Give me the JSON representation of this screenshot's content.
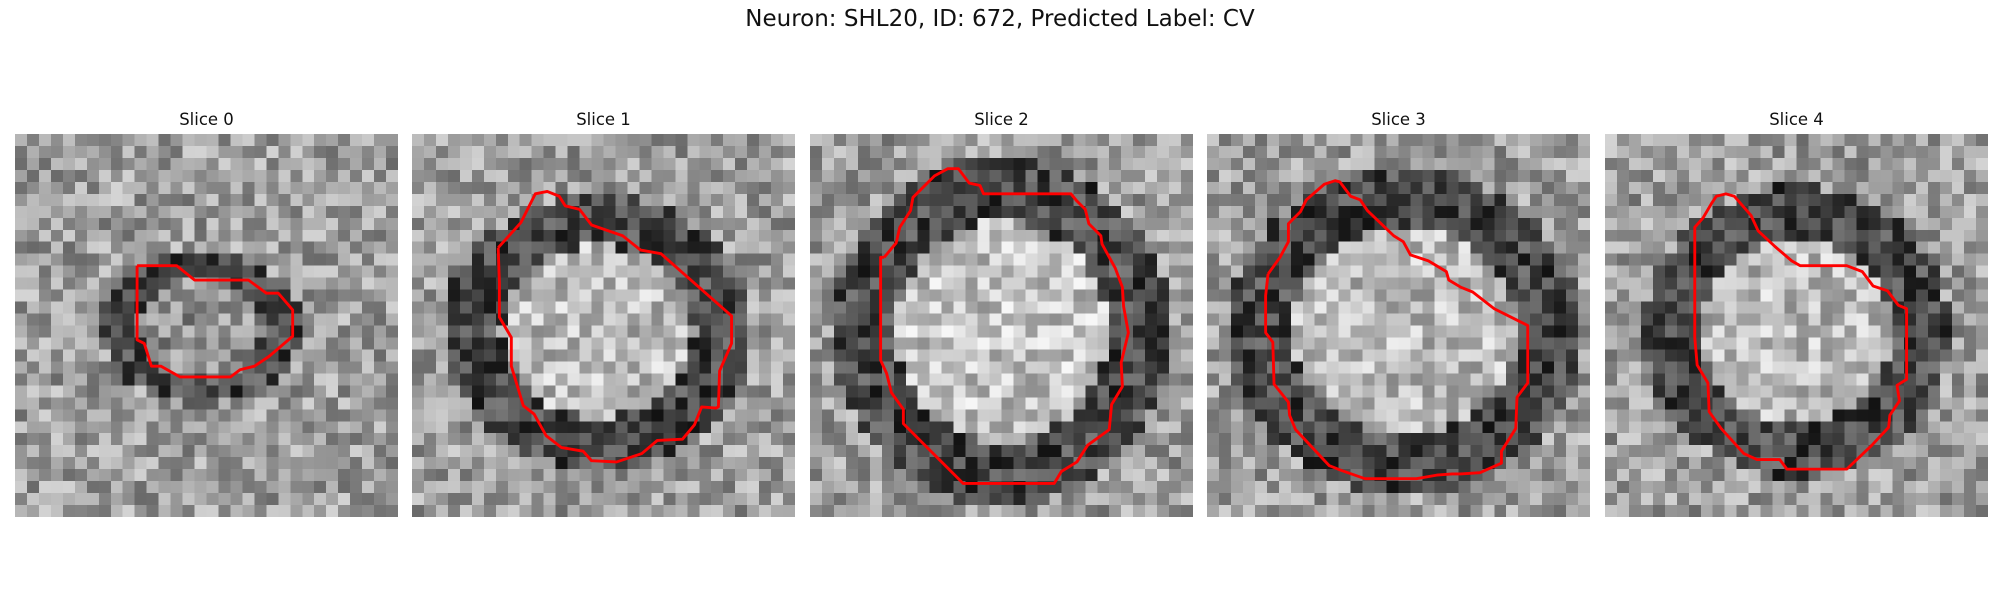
{
  "figure": {
    "title": "Neuron: SHL20, ID: 672, Predicted Label: CV",
    "contour_color": "#ff0000",
    "colormap": "gray",
    "grid_size": 32
  },
  "panels": [
    {
      "title": "Slice 0",
      "cell": {
        "cx": 15.5,
        "cy": 16.2,
        "rx": 6.2,
        "ry": 4.8,
        "brightness": 0.35
      }
    },
    {
      "title": "Slice 1",
      "cell": {
        "cx": 15.5,
        "cy": 16.5,
        "rx": 9.5,
        "ry": 8.5,
        "brightness": 0.8
      }
    },
    {
      "title": "Slice 2",
      "cell": {
        "cx": 16,
        "cy": 16.5,
        "rx": 10.5,
        "ry": 10.8,
        "brightness": 0.9
      }
    },
    {
      "title": "Slice 3",
      "cell": {
        "cx": 16.5,
        "cy": 16.5,
        "rx": 11,
        "ry": 10,
        "brightness": 0.8
      }
    },
    {
      "title": "Slice 4",
      "cell": {
        "cx": 16,
        "cy": 16.5,
        "rx": 9.5,
        "ry": 9,
        "brightness": 0.8
      }
    }
  ]
}
